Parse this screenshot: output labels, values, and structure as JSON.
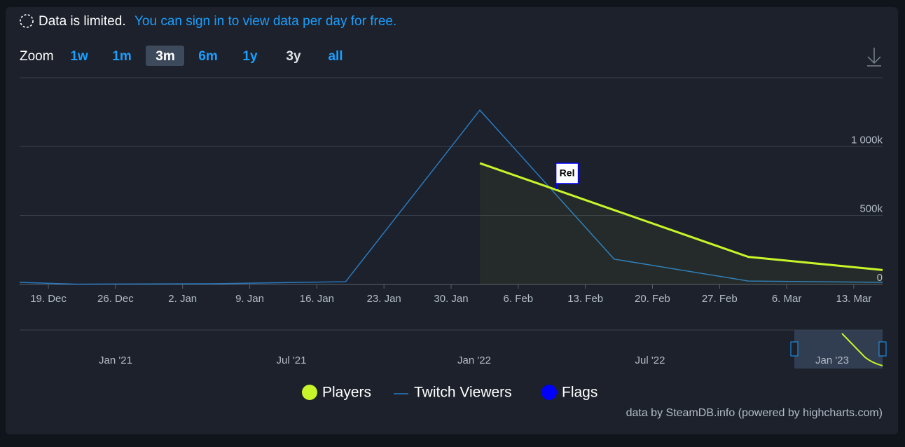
{
  "notice": {
    "text": "Data is limited.",
    "link": "You can sign in to view data per day for free."
  },
  "zoom": {
    "label": "Zoom",
    "buttons": [
      "1w",
      "1m",
      "3m",
      "6m",
      "1y",
      "3y",
      "all"
    ],
    "selected": "3m"
  },
  "chart_data": {
    "type": "line",
    "x": [
      "16. Dec",
      "22. Dec",
      "5. Jan",
      "19. Jan",
      "2. Feb",
      "16. Feb",
      "2. Mar",
      "16. Mar"
    ],
    "series": [
      {
        "name": "Players",
        "color": "#c8f52a",
        "values": [
          null,
          null,
          null,
          null,
          880000,
          540000,
          200000,
          105000
        ]
      },
      {
        "name": "Twitch Viewers",
        "color": "#2a7ac0",
        "values": [
          15000,
          2000,
          5000,
          20000,
          1265000,
          184000,
          25000,
          15000
        ]
      }
    ],
    "flags": {
      "name": "Flags",
      "color": "#0000ff",
      "items": [
        {
          "text": "Rel",
          "x": "10. Feb"
        }
      ]
    },
    "xlim": [
      "16. Dec",
      "16. Mar"
    ],
    "xticks": [
      "19. Dec",
      "26. Dec",
      "2. Jan",
      "9. Jan",
      "16. Jan",
      "23. Jan",
      "30. Jan",
      "6. Feb",
      "13. Feb",
      "20. Feb",
      "27. Feb",
      "6. Mar",
      "13. Mar"
    ],
    "ylim": [
      0,
      1500000
    ],
    "yticks": [
      0,
      {
        "value": 500000,
        "label": "500k"
      },
      {
        "value": 1000000,
        "label": "1 000k"
      }
    ],
    "grid": true,
    "navigator_labels": [
      "Jan '21",
      "Jul '21",
      "Jan '22",
      "Jul '22",
      "Jan '23"
    ],
    "credits": "data by SteamDB.info (powered by highcharts.com)"
  }
}
